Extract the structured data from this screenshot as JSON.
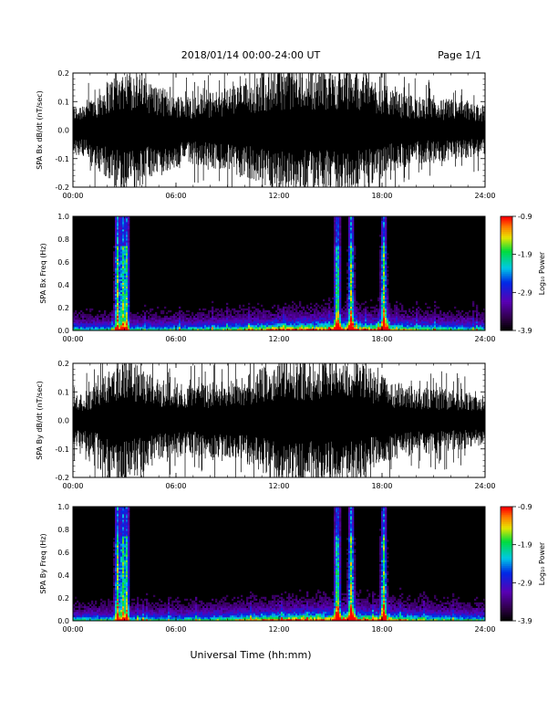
{
  "header": {
    "title": "2018/01/14  00:00-24:00 UT",
    "page": "Page 1/1"
  },
  "colorbar_label": "Log₁₀ Power",
  "xlabel_bottom": "Universal Time (hh:mm)",
  "chart_data": [
    {
      "type": "line",
      "ylabel": "SPA Bx dB/dt (nT/sec)",
      "x_ticks": [
        "00:00",
        "06:00",
        "12:00",
        "18:00",
        "24:00"
      ],
      "y_ticks": [
        "-0.2",
        "-0.1",
        "0.0",
        "0.1",
        "0.2"
      ],
      "xlim": [
        0,
        24
      ],
      "ylim": [
        -0.2,
        0.2
      ],
      "envelope_hours": [
        0,
        1,
        2,
        3,
        4,
        5,
        6,
        7,
        8,
        9,
        10,
        11,
        12,
        13,
        14,
        15,
        16,
        17,
        18,
        19,
        20,
        21,
        22,
        23,
        24
      ],
      "envelope_amplitude": [
        0.08,
        0.1,
        0.16,
        0.2,
        0.18,
        0.14,
        0.12,
        0.11,
        0.12,
        0.14,
        0.15,
        0.18,
        0.2,
        0.2,
        0.2,
        0.2,
        0.2,
        0.19,
        0.15,
        0.12,
        0.11,
        0.1,
        0.1,
        0.09,
        0.08
      ]
    },
    {
      "type": "heatmap",
      "ylabel": "SPA Bx Freq (Hz)",
      "x_ticks": [
        "00:00",
        "06:00",
        "12:00",
        "18:00",
        "24:00"
      ],
      "y_ticks": [
        "0.0",
        "0.2",
        "0.4",
        "0.6",
        "0.8",
        "1.0"
      ],
      "xlim": [
        0,
        24
      ],
      "ylim": [
        0,
        1.0
      ],
      "colorbar_ticks": [
        "-0.9",
        "-1.9",
        "-2.9",
        "-3.9"
      ],
      "colorbar_range": [
        -3.9,
        -0.9
      ],
      "strong_band_hours": [
        2.6,
        2.9,
        3.1,
        15.4,
        16.2,
        18.1
      ],
      "low_freq_peak_hours": [
        12.5,
        16.0
      ]
    },
    {
      "type": "line",
      "ylabel": "SPA By dB/dt (nT/sec)",
      "x_ticks": [
        "00:00",
        "06:00",
        "12:00",
        "18:00",
        "24:00"
      ],
      "y_ticks": [
        "-0.2",
        "-0.1",
        "0.0",
        "0.1",
        "0.2"
      ],
      "xlim": [
        0,
        24
      ],
      "ylim": [
        -0.2,
        0.2
      ],
      "envelope_hours": [
        0,
        1,
        2,
        3,
        4,
        5,
        6,
        7,
        8,
        9,
        10,
        11,
        12,
        13,
        14,
        15,
        16,
        17,
        18,
        19,
        20,
        21,
        22,
        23,
        24
      ],
      "envelope_amplitude": [
        0.08,
        0.1,
        0.16,
        0.2,
        0.17,
        0.13,
        0.12,
        0.11,
        0.12,
        0.13,
        0.14,
        0.17,
        0.2,
        0.2,
        0.2,
        0.2,
        0.2,
        0.18,
        0.14,
        0.12,
        0.11,
        0.1,
        0.1,
        0.09,
        0.08
      ]
    },
    {
      "type": "heatmap",
      "ylabel": "SPA By Freq (Hz)",
      "x_ticks": [
        "00:00",
        "06:00",
        "12:00",
        "18:00",
        "24:00"
      ],
      "y_ticks": [
        "0.0",
        "0.2",
        "0.4",
        "0.6",
        "0.8",
        "1.0"
      ],
      "xlim": [
        0,
        24
      ],
      "ylim": [
        0,
        1.0
      ],
      "colorbar_ticks": [
        "-0.9",
        "-1.9",
        "-2.9",
        "-3.9"
      ],
      "colorbar_range": [
        -3.9,
        -0.9
      ],
      "strong_band_hours": [
        2.6,
        2.9,
        3.1,
        15.4,
        16.2,
        18.1
      ],
      "low_freq_peak_hours": [
        12.5,
        16.0
      ]
    }
  ]
}
